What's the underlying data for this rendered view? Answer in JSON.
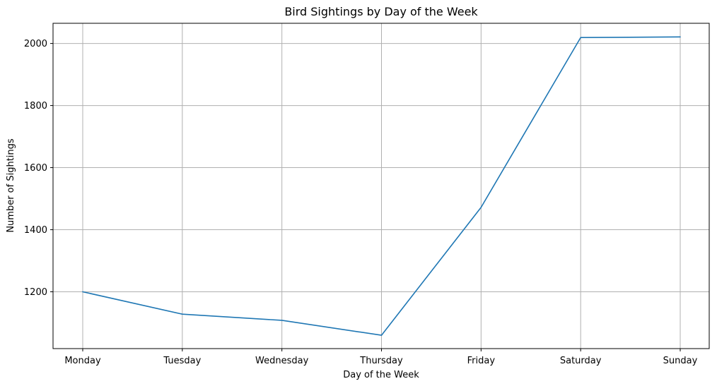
{
  "chart_data": {
    "type": "line",
    "title": "Bird Sightings by Day of the Week",
    "xlabel": "Day of the Week",
    "ylabel": "Number of Sightings",
    "categories": [
      "Monday",
      "Tuesday",
      "Wednesday",
      "Thursday",
      "Friday",
      "Saturday",
      "Sunday"
    ],
    "series": [
      {
        "values": [
          1200,
          1128,
          1108,
          1060,
          1472,
          2019,
          2021
        ],
        "color": "#1f77b4"
      }
    ],
    "ylim": [
      1017,
      2065
    ],
    "yticks": [
      1200,
      1400,
      1600,
      1800,
      2000
    ],
    "grid": true
  }
}
